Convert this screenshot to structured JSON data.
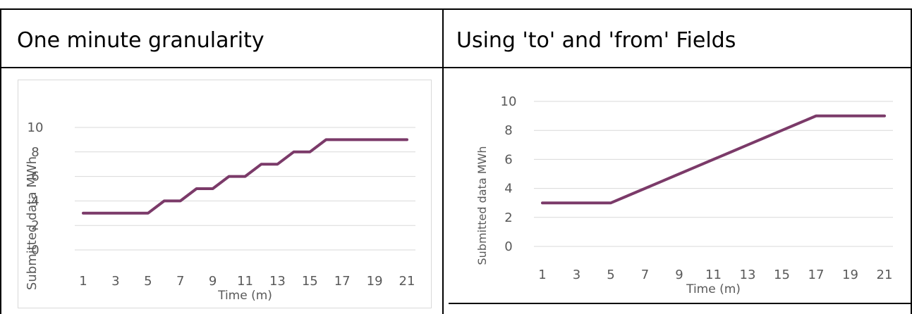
{
  "headers": {
    "left": "One minute granularity",
    "right": "Using 'to' and 'from' Fields"
  },
  "colors": {
    "series": "#7b3a69",
    "grid": "#d9d9d9",
    "text": "#595959"
  },
  "chart_data": [
    {
      "type": "line",
      "title": "",
      "xlabel": "Time (m)",
      "ylabel": "Submitted data MWh",
      "ylim": [
        0,
        10
      ],
      "y_ticks": [
        "0",
        "2",
        "4",
        "6",
        "8",
        "10"
      ],
      "x_tick_labels": [
        "1",
        "3",
        "5",
        "7",
        "9",
        "11",
        "13",
        "15",
        "17",
        "19",
        "21"
      ],
      "grid": true,
      "series": [
        {
          "x": [
            1,
            2,
            3,
            4,
            5,
            6,
            7,
            8,
            9,
            10,
            11,
            12,
            13,
            14,
            15,
            16,
            17,
            18,
            19,
            20,
            21
          ],
          "values": [
            3,
            3,
            3,
            3,
            3,
            4,
            4,
            5,
            5,
            6,
            6,
            7,
            7,
            8,
            8,
            9,
            9,
            9,
            9,
            9,
            9
          ]
        }
      ]
    },
    {
      "type": "line",
      "title": "",
      "xlabel": "Time (m)",
      "ylabel": "Submitted data MWh",
      "ylim": [
        0,
        10
      ],
      "y_ticks": [
        "0",
        "2",
        "4",
        "6",
        "8",
        "10"
      ],
      "x_tick_labels": [
        "1",
        "3",
        "5",
        "7",
        "9",
        "11",
        "13",
        "15",
        "17",
        "19",
        "21"
      ],
      "grid": true,
      "series": [
        {
          "x": [
            1,
            2,
            3,
            4,
            5,
            6,
            7,
            8,
            9,
            10,
            11,
            12,
            13,
            14,
            15,
            16,
            17,
            18,
            19,
            20,
            21
          ],
          "values": [
            3,
            3,
            3,
            3,
            3,
            3.5,
            4,
            4.5,
            5,
            5.5,
            6,
            6.5,
            7,
            7.5,
            8,
            8.5,
            9,
            9,
            9,
            9,
            9
          ]
        }
      ]
    }
  ]
}
